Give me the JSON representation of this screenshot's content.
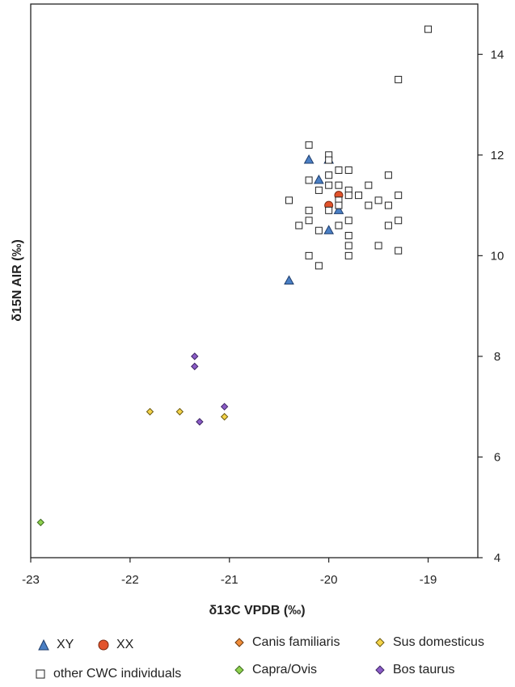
{
  "chart_data": {
    "type": "scatter",
    "xlabel": "δ13C VPDB (‰)",
    "ylabel": "δ15N AIR (‰)",
    "xlim": [
      -23,
      -18.5
    ],
    "ylim": [
      4,
      15
    ],
    "xticks": [
      -23,
      -22,
      -21,
      -20,
      -19
    ],
    "yticks": [
      4,
      6,
      8,
      10,
      12,
      14
    ],
    "y_axis_side": "right",
    "grid": false,
    "legend_position": "bottom",
    "series": [
      {
        "name": "XY",
        "marker": "triangle",
        "color": "#4a7fc4",
        "points": [
          [
            -20.2,
            11.9
          ],
          [
            -20.0,
            11.9
          ],
          [
            -20.1,
            11.5
          ],
          [
            -19.9,
            10.9
          ],
          [
            -20.0,
            10.5
          ],
          [
            -20.4,
            9.5
          ]
        ]
      },
      {
        "name": "XX",
        "marker": "circle",
        "color": "#e2532c",
        "points": [
          [
            -19.9,
            11.2
          ],
          [
            -20.0,
            11.0
          ]
        ]
      },
      {
        "name": "Canis familiaris",
        "marker": "diamond",
        "color": "#f08c3a",
        "points": [
          [
            -19.4,
            11.0
          ]
        ]
      },
      {
        "name": "Sus domesticus",
        "marker": "diamond",
        "color": "#f5d44a",
        "points": [
          [
            -21.8,
            6.9
          ],
          [
            -21.5,
            6.9
          ],
          [
            -21.05,
            6.8
          ]
        ]
      },
      {
        "name": "other CWC individuals",
        "marker": "square",
        "color": "#ffffff",
        "points": [
          [
            -19.0,
            14.5
          ],
          [
            -19.3,
            13.5
          ],
          [
            -20.2,
            12.2
          ],
          [
            -20.0,
            12.0
          ],
          [
            -20.0,
            11.9
          ],
          [
            -19.9,
            11.7
          ],
          [
            -19.8,
            11.7
          ],
          [
            -20.0,
            11.6
          ],
          [
            -19.4,
            11.6
          ],
          [
            -20.2,
            11.5
          ],
          [
            -20.0,
            11.4
          ],
          [
            -19.9,
            11.4
          ],
          [
            -19.6,
            11.4
          ],
          [
            -20.1,
            11.3
          ],
          [
            -19.8,
            11.3
          ],
          [
            -19.8,
            11.2
          ],
          [
            -19.7,
            11.2
          ],
          [
            -19.3,
            11.2
          ],
          [
            -20.4,
            11.1
          ],
          [
            -19.9,
            11.1
          ],
          [
            -19.5,
            11.1
          ],
          [
            -19.9,
            11.0
          ],
          [
            -19.6,
            11.0
          ],
          [
            -19.4,
            11.0
          ],
          [
            -20.2,
            10.9
          ],
          [
            -20.0,
            10.9
          ],
          [
            -20.2,
            10.7
          ],
          [
            -19.8,
            10.7
          ],
          [
            -19.3,
            10.7
          ],
          [
            -20.3,
            10.6
          ],
          [
            -19.9,
            10.6
          ],
          [
            -19.4,
            10.6
          ],
          [
            -20.1,
            10.5
          ],
          [
            -19.8,
            10.4
          ],
          [
            -19.8,
            10.2
          ],
          [
            -19.5,
            10.2
          ],
          [
            -19.3,
            10.1
          ],
          [
            -20.2,
            10.0
          ],
          [
            -19.8,
            10.0
          ],
          [
            -20.1,
            9.8
          ]
        ]
      },
      {
        "name": "Capra/Ovis",
        "marker": "diamond",
        "color": "#8fd14f",
        "points": [
          [
            -22.9,
            4.7
          ]
        ]
      },
      {
        "name": "Bos taurus",
        "marker": "diamond",
        "color": "#8b5cc7",
        "points": [
          [
            -21.35,
            8.0
          ],
          [
            -21.35,
            7.8
          ],
          [
            -21.05,
            7.0
          ],
          [
            -21.3,
            6.7
          ]
        ]
      }
    ]
  },
  "legend": [
    {
      "key": "xy",
      "label": "XY",
      "marker": "triangle",
      "color": "#4a7fc4"
    },
    {
      "key": "xx",
      "label": "XX",
      "marker": "circle",
      "color": "#e2532c"
    },
    {
      "key": "canis",
      "label": "Canis familiaris",
      "marker": "diamond",
      "color": "#f08c3a"
    },
    {
      "key": "sus",
      "label": "Sus domesticus",
      "marker": "diamond",
      "color": "#f5d44a"
    },
    {
      "key": "other",
      "label": "other CWC individuals",
      "marker": "square",
      "color": "#ffffff"
    },
    {
      "key": "capra",
      "label": "Capra/Ovis",
      "marker": "diamond",
      "color": "#8fd14f"
    },
    {
      "key": "bos",
      "label": "Bos taurus",
      "marker": "diamond",
      "color": "#8b5cc7"
    }
  ]
}
